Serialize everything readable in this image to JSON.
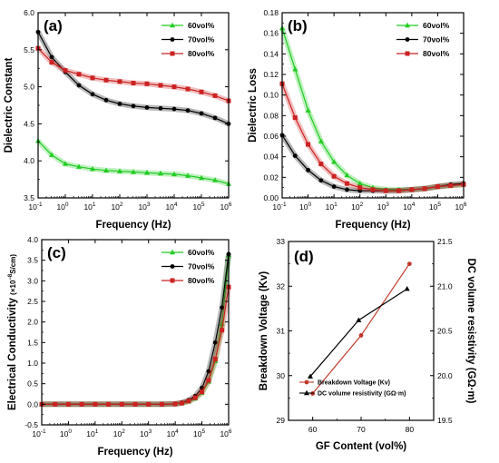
{
  "chart_data": [
    {
      "id": "a",
      "panel_label": "(a)",
      "type": "line",
      "xlabel": "Frequency (Hz)",
      "ylabel": "Dielectric Constant",
      "xscale": "log",
      "xlim_exp": [
        -1,
        6
      ],
      "ylim": [
        3.5,
        6.0
      ],
      "yticks": [
        "3.5",
        "4.0",
        "4.5",
        "5.0",
        "5.5",
        "6.0"
      ],
      "x_exp": [
        -1,
        -0.5,
        0,
        0.5,
        1,
        1.5,
        2,
        2.5,
        3,
        3.5,
        4,
        4.5,
        5,
        5.5,
        6
      ],
      "legend": "top-right",
      "series": [
        {
          "name": "60vol%",
          "color": "#22cc22",
          "marker": "triangle",
          "values": [
            4.27,
            4.08,
            3.96,
            3.92,
            3.89,
            3.87,
            3.86,
            3.85,
            3.84,
            3.83,
            3.82,
            3.8,
            3.77,
            3.74,
            3.69
          ]
        },
        {
          "name": "70vol%",
          "color": "#000000",
          "marker": "circle",
          "values": [
            5.74,
            5.4,
            5.2,
            5.02,
            4.9,
            4.82,
            4.77,
            4.74,
            4.72,
            4.71,
            4.7,
            4.68,
            4.64,
            4.58,
            4.5
          ]
        },
        {
          "name": "80vol%",
          "color": "#cc2222",
          "marker": "square",
          "values": [
            5.52,
            5.33,
            5.22,
            5.17,
            5.12,
            5.09,
            5.07,
            5.05,
            5.04,
            5.02,
            5.0,
            4.97,
            4.93,
            4.88,
            4.81
          ]
        }
      ]
    },
    {
      "id": "b",
      "panel_label": "(b)",
      "type": "line",
      "xlabel": "Frequency (Hz)",
      "ylabel": "Dielectric Loss",
      "xscale": "log",
      "xlim_exp": [
        -1,
        6
      ],
      "ylim": [
        0.0,
        0.18
      ],
      "yticks": [
        "0.00",
        "0.02",
        "0.04",
        "0.06",
        "0.08",
        "0.10",
        "0.12",
        "0.14",
        "0.16",
        "0.18"
      ],
      "x_exp": [
        -1,
        -0.5,
        0,
        0.5,
        1,
        1.5,
        2,
        2.5,
        3,
        3.5,
        4,
        4.5,
        5,
        5.5,
        6
      ],
      "legend": "top-right",
      "series": [
        {
          "name": "60vol%",
          "color": "#22cc22",
          "marker": "triangle",
          "values": [
            0.165,
            0.125,
            0.085,
            0.055,
            0.035,
            0.022,
            0.014,
            0.01,
            0.008,
            0.008,
            0.008,
            0.009,
            0.011,
            0.012,
            0.013
          ]
        },
        {
          "name": "70vol%",
          "color": "#000000",
          "marker": "circle",
          "values": [
            0.061,
            0.041,
            0.027,
            0.017,
            0.011,
            0.008,
            0.007,
            0.007,
            0.007,
            0.007,
            0.008,
            0.009,
            0.011,
            0.013,
            0.014
          ]
        },
        {
          "name": "80vol%",
          "color": "#cc2222",
          "marker": "square",
          "values": [
            0.111,
            0.078,
            0.052,
            0.033,
            0.021,
            0.014,
            0.01,
            0.008,
            0.007,
            0.007,
            0.008,
            0.009,
            0.011,
            0.012,
            0.013
          ]
        }
      ]
    },
    {
      "id": "c",
      "panel_label": "(c)",
      "type": "line",
      "xlabel": "Frequency (Hz)",
      "ylabel_main": "Electrical Conductivity",
      "ylabel_unit": "(×10",
      "ylabel_exp": "−8",
      "ylabel_tail": "S/cm)",
      "xscale": "log",
      "xlim_exp": [
        -1,
        6
      ],
      "ylim": [
        -0.5,
        4.0
      ],
      "yticks": [
        "-0.5",
        "0.0",
        "0.5",
        "1.0",
        "1.5",
        "2.0",
        "2.5",
        "3.0",
        "3.5",
        "4.0"
      ],
      "x_exp": [
        -1,
        -0.5,
        0,
        0.5,
        1,
        1.5,
        2,
        2.5,
        3,
        3.5,
        4,
        4.25,
        4.5,
        4.75,
        5,
        5.25,
        5.5,
        5.75,
        6
      ],
      "legend": "top-right",
      "series": [
        {
          "name": "60vol%",
          "color": "#22cc22",
          "marker": "triangle",
          "values": [
            0,
            0,
            0,
            0,
            0,
            0,
            0,
            0,
            0,
            0,
            0.01,
            0.03,
            0.07,
            0.14,
            0.28,
            0.55,
            1.05,
            1.95,
            3.62
          ]
        },
        {
          "name": "70vol%",
          "color": "#000000",
          "marker": "circle",
          "values": [
            0,
            0,
            0,
            0,
            0,
            0,
            0,
            0,
            0,
            0,
            0.01,
            0.04,
            0.1,
            0.2,
            0.4,
            0.8,
            1.5,
            2.35,
            3.65
          ]
        },
        {
          "name": "80vol%",
          "color": "#cc2222",
          "marker": "square",
          "values": [
            0,
            0,
            0,
            0,
            0,
            0,
            0,
            0,
            0,
            0,
            0.01,
            0.03,
            0.08,
            0.16,
            0.3,
            0.58,
            1.1,
            1.8,
            2.85
          ]
        }
      ]
    },
    {
      "id": "d",
      "panel_label": "(d)",
      "type": "line",
      "xlabel": "GF Content (vol%)",
      "ylabel": "Breakdown Voltage (Kv)",
      "y2label": "DC volume resistivity (GΩ·m)",
      "xlim": [
        55,
        85
      ],
      "xticks": [
        "60",
        "70",
        "80"
      ],
      "ylim": [
        29,
        33
      ],
      "yticks": [
        "29",
        "30",
        "31",
        "32",
        "33"
      ],
      "y2lim": [
        19.5,
        21.5
      ],
      "y2ticks": [
        "19.5",
        "20.0",
        "20.5",
        "21.0",
        "21.5"
      ],
      "legend": "bottom-right",
      "series": [
        {
          "name": "Breakdown Voltage (Kv)",
          "color": "#c0392b",
          "marker": "circle",
          "axis": "left",
          "x": [
            60,
            70,
            80
          ],
          "values": [
            29.6,
            30.9,
            32.5
          ]
        },
        {
          "name": "DC volume resistivity (GΩ·m)",
          "color": "#000000",
          "marker": "triangle",
          "axis": "right",
          "x": [
            59.5,
            69.5,
            79.5
          ],
          "values": [
            19.99,
            20.62,
            20.97
          ]
        }
      ]
    }
  ]
}
